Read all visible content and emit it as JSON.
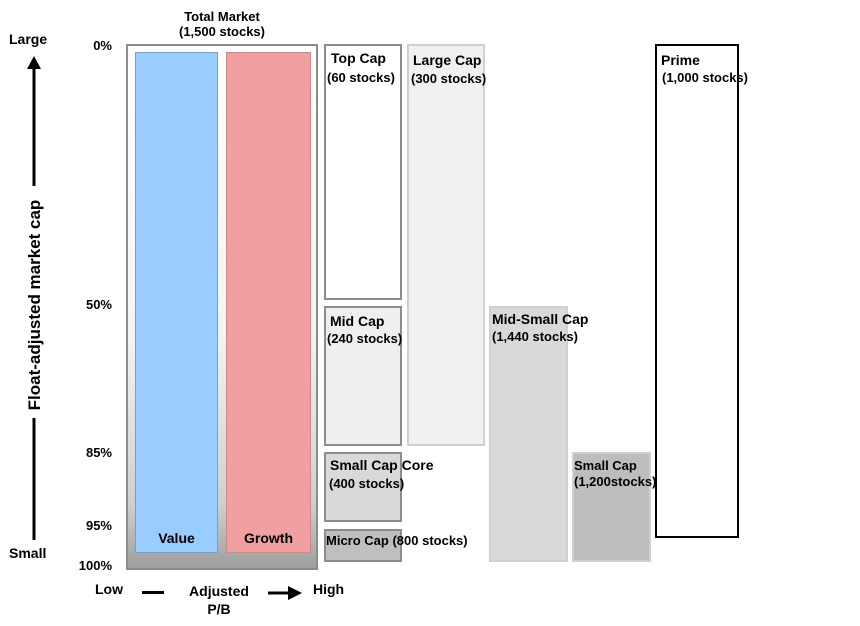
{
  "axis": {
    "y_title": "Float-adjusted market cap",
    "y_top": "Large",
    "y_bottom": "Small",
    "ticks": [
      "0%",
      "50%",
      "85%",
      "95%",
      "100%"
    ],
    "x_low": "Low",
    "x_title": "Adjusted P/B",
    "x_high": "High"
  },
  "total_market": {
    "title": "Total Market",
    "count": "(1,500 stocks)",
    "value_label": "Value",
    "growth_label": "Growth"
  },
  "segments": {
    "top_cap": {
      "title": "Top Cap",
      "count": "(60 stocks)"
    },
    "mid_cap": {
      "title": "Mid Cap",
      "count": "(240 stocks)"
    },
    "small_core": {
      "title": "Small Cap Core",
      "count": "(400 stocks)"
    },
    "micro_cap": {
      "title": "Micro Cap",
      "count": "(800 stocks)"
    },
    "large_cap": {
      "title": "Large Cap",
      "count": "(300 stocks)"
    },
    "mid_small": {
      "title": "Mid-Small Cap",
      "count": "(1,440 stocks)"
    },
    "small_cap": {
      "title": "Small Cap",
      "count": "(1,200stocks)"
    },
    "prime": {
      "title": "Prime",
      "count": "(1,000 stocks)"
    }
  },
  "colors": {
    "value": "#99ccff",
    "growth": "#f0a0a0",
    "light_gray": "#efefef",
    "mid_gray": "#d9d9d9",
    "dark_gray": "#bfbfbf"
  }
}
